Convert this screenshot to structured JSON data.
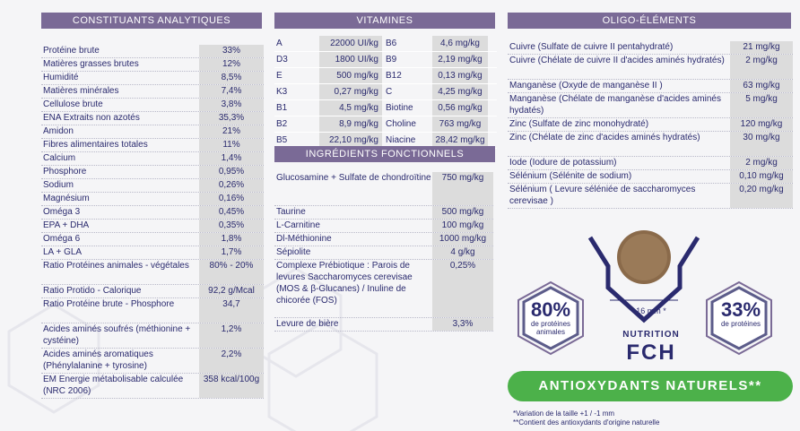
{
  "analytiques": {
    "title": "CONSTITUANTS ANALYTIQUES",
    "rows": [
      {
        "label": "Protéine brute",
        "value": "33%"
      },
      {
        "label": "Matières grasses brutes",
        "value": "12%"
      },
      {
        "label": "Humidité",
        "value": "8,5%"
      },
      {
        "label": "Matières minérales",
        "value": "7,4%"
      },
      {
        "label": "Cellulose brute",
        "value": "3,8%"
      },
      {
        "label": "ENA Extraits non azotés",
        "value": "35,3%"
      },
      {
        "label": "Amidon",
        "value": "21%"
      },
      {
        "label": "Fibres alimentaires totales",
        "value": "11%"
      },
      {
        "label": "Calcium",
        "value": "1,4%"
      },
      {
        "label": "Phosphore",
        "value": "0,95%"
      },
      {
        "label": "Sodium",
        "value": "0,26%"
      },
      {
        "label": "Magnésium",
        "value": "0,16%"
      },
      {
        "label": "Oméga 3",
        "value": "0,45%"
      },
      {
        "label": "EPA + DHA",
        "value": "0,35%"
      },
      {
        "label": "Oméga 6",
        "value": "1,8%"
      },
      {
        "label": "LA + GLA",
        "value": "1,7%"
      },
      {
        "label": "Ratio Protéines animales - végétales",
        "value": "80% - 20%"
      },
      {
        "label": "Ratio Protido - Calorique",
        "value": "92,2 g/Mcal"
      },
      {
        "label": "Ratio Protéine brute - Phosphore",
        "value": "34,7"
      },
      {
        "label": "Acides aminés soufrés (méthionine + cystéine)",
        "value": "1,2%"
      },
      {
        "label": "Acides aminés aromatiques (Phénylalanine + tyrosine)",
        "value": "2,2%"
      },
      {
        "label": "EM Energie métabolisable calculée (NRC 2006)",
        "value": "358 kcal/100g"
      }
    ]
  },
  "vitamines": {
    "title": "VITAMINES",
    "rows": [
      {
        "k1": "A",
        "v1": "22000 UI/kg",
        "k2": "B6",
        "v2": "4,6 mg/kg"
      },
      {
        "k1": "D3",
        "v1": "1800 UI/kg",
        "k2": "B9",
        "v2": "2,19 mg/kg"
      },
      {
        "k1": "E",
        "v1": "500 mg/kg",
        "k2": "B12",
        "v2": "0,13 mg/kg"
      },
      {
        "k1": "K3",
        "v1": "0,27 mg/kg",
        "k2": "C",
        "v2": "4,25 mg/kg"
      },
      {
        "k1": "B1",
        "v1": "4,5 mg/kg",
        "k2": "Biotine",
        "v2": "0,56 mg/kg"
      },
      {
        "k1": "B2",
        "v1": "8,9 mg/kg",
        "k2": "Choline",
        "v2": "763 mg/kg"
      },
      {
        "k1": "B5",
        "v1": "22,10 mg/kg",
        "k2": "Niacine",
        "v2": "28,42 mg/kg"
      }
    ]
  },
  "fonctionnels": {
    "title": "INGRÉDIENTS FONCTIONNELS",
    "rows": [
      {
        "label": "Glucosamine + Sulfate de chondroïtine",
        "value": "750 mg/kg"
      },
      {
        "label": "Taurine",
        "value": "500 mg/kg"
      },
      {
        "label": "L-Carnitine",
        "value": "100 mg/kg"
      },
      {
        "label": "Dl-Méthionine",
        "value": "1000 mg/kg"
      },
      {
        "label": "Sépiolite",
        "value": "4 g/kg"
      },
      {
        "label": "Complexe Prébiotique : Parois de levures Saccharomyces cerevisae (MOS & β-Glucanes) / Inuline de chicorée (FOS)",
        "value": "0,25%"
      },
      {
        "label": "Levure de bière",
        "value": "3,3%"
      }
    ]
  },
  "oligo": {
    "title": "OLIGO-ÉLÉMENTS",
    "rows": [
      {
        "label": "Cuivre (Sulfate de cuivre II pentahydraté)",
        "value": "21 mg/kg"
      },
      {
        "label": "Cuivre (Chélate de cuivre II d'acides aminés hydratés)",
        "value": "2 mg/kg"
      },
      {
        "label": "Manganèse (Oxyde de manganèse II )",
        "value": "63 mg/kg"
      },
      {
        "label": "Manganèse (Chélate de manganèse d'acides aminés hydatés)",
        "value": "5 mg/kg"
      },
      {
        "label": "Zinc (Sulfate de zinc monohydraté)",
        "value": "120 mg/kg"
      },
      {
        "label": "Zinc (Chélate de zinc d'acides aminés hydratés)",
        "value": "30 mg/kg"
      },
      {
        "label": "Iode (Iodure de potassium)",
        "value": "2 mg/kg"
      },
      {
        "label": "Sélénium (Sélénite de sodium)",
        "value": "0,10 mg/kg"
      },
      {
        "label": "Sélénium ( Levure séléniée de saccharomyces cerevisae )",
        "value": "0,20 mg/kg"
      }
    ]
  },
  "badges": {
    "left_pct": "80%",
    "left_sub": "de protéines animales",
    "right_pct": "33%",
    "right_sub": "de protéines",
    "kibble": "16 mm *",
    "brand_top": "NUTRITION",
    "brand_main": "FCH"
  },
  "banner": "ANTIOXYDANTS NATURELS**",
  "footnotes": [
    "*Variation de la taille +1 / -1 mm",
    "**Contient des antioxydants d'origine naturelle"
  ],
  "colors": {
    "header": "#7a6a96",
    "navy": "#2a2a6e",
    "green": "#4cb14a",
    "value_bg": "#dcdcdc"
  }
}
